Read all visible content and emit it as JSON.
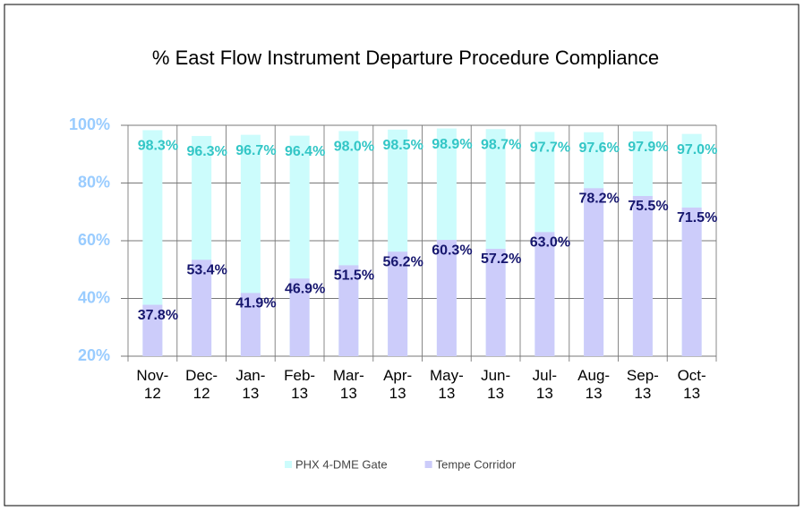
{
  "chart_data": {
    "type": "bar",
    "title": "% East Flow Instrument Departure Procedure Compliance",
    "categories": [
      "Nov-12",
      "Dec-12",
      "Jan-13",
      "Feb-13",
      "Mar-13",
      "Apr-13",
      "May-13",
      "Jun-13",
      "Jul-13",
      "Aug-13",
      "Sep-13",
      "Oct-13"
    ],
    "series": [
      {
        "name": "PHX 4-DME Gate",
        "color": "#ccfcfc",
        "label_color": "#33c6c6",
        "values": [
          98.3,
          96.3,
          96.7,
          96.4,
          98.0,
          98.5,
          98.9,
          98.7,
          97.7,
          97.6,
          97.9,
          97.0
        ],
        "value_labels": [
          "98.3%",
          "96.3%",
          "96.7%",
          "96.4%",
          "98.0%",
          "98.5%",
          "98.9%",
          "98.7%",
          "97.7%",
          "97.6%",
          "97.9%",
          "97.0%"
        ]
      },
      {
        "name": "Tempe Corridor",
        "color": "#ccccfa",
        "label_color": "#16166e",
        "values": [
          37.8,
          53.4,
          41.9,
          46.9,
          51.5,
          56.2,
          60.3,
          57.2,
          63.0,
          78.2,
          75.5,
          71.5
        ],
        "value_labels": [
          "37.8%",
          "53.4%",
          "41.9%",
          "46.9%",
          "51.5%",
          "56.2%",
          "60.3%",
          "57.2%",
          "63.0%",
          "78.2%",
          "75.5%",
          "71.5%"
        ]
      }
    ],
    "ylim": [
      20,
      100
    ],
    "yticks": [
      {
        "value": 20,
        "label": "20%"
      },
      {
        "value": 40,
        "label": "40%"
      },
      {
        "value": 60,
        "label": "60%"
      },
      {
        "value": 80,
        "label": "80%"
      },
      {
        "value": 100,
        "label": "100%"
      }
    ],
    "grid": true,
    "legend": "bottom"
  }
}
